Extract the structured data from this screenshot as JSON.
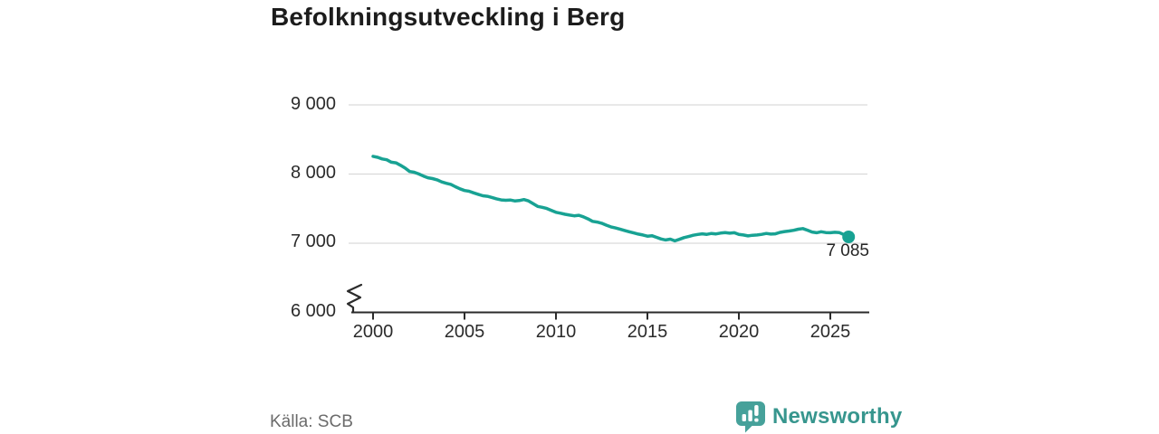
{
  "header": {
    "title": "Befolkningsutveckling i Berg"
  },
  "chart_data": {
    "type": "line",
    "title": "Befolkningsutveckling i Berg",
    "series_name": "Befolkning",
    "xlabel": "",
    "ylabel": "",
    "x_axis_range": [
      1998.8,
      2027.3
    ],
    "y_axis_range": [
      6000,
      9000
    ],
    "axis_break_at_bottom": true,
    "grid": true,
    "x_tick_labels": [
      "2000",
      "2005",
      "2010",
      "2015",
      "2020",
      "2025"
    ],
    "x_tick_years": [
      2000,
      2005,
      2010,
      2015,
      2020,
      2025
    ],
    "y_tick_labels": [
      "9 000",
      "8 000",
      "7 000",
      "6 000"
    ],
    "y_tick_values": [
      9000,
      8000,
      7000,
      6000
    ],
    "end_label": "7 085",
    "last_value": 7085,
    "last_year": 2026,
    "line_color": "#18a293",
    "dot_color": "#18a293",
    "grid_color": "#d9d9d9",
    "axis_color": "#2b2b2b",
    "points": [
      [
        2000.0,
        8250
      ],
      [
        2000.25,
        8235
      ],
      [
        2000.5,
        8212
      ],
      [
        2000.75,
        8200
      ],
      [
        2001.0,
        8165
      ],
      [
        2001.25,
        8155
      ],
      [
        2001.5,
        8120
      ],
      [
        2001.75,
        8080
      ],
      [
        2002.0,
        8030
      ],
      [
        2002.25,
        8020
      ],
      [
        2002.5,
        7995
      ],
      [
        2002.75,
        7965
      ],
      [
        2003.0,
        7940
      ],
      [
        2003.25,
        7928
      ],
      [
        2003.5,
        7910
      ],
      [
        2003.75,
        7880
      ],
      [
        2004.0,
        7860
      ],
      [
        2004.25,
        7845
      ],
      [
        2004.5,
        7810
      ],
      [
        2004.75,
        7780
      ],
      [
        2005.0,
        7755
      ],
      [
        2005.25,
        7745
      ],
      [
        2005.5,
        7722
      ],
      [
        2005.75,
        7700
      ],
      [
        2006.0,
        7680
      ],
      [
        2006.25,
        7672
      ],
      [
        2006.5,
        7655
      ],
      [
        2006.75,
        7635
      ],
      [
        2007.0,
        7620
      ],
      [
        2007.25,
        7615
      ],
      [
        2007.5,
        7618
      ],
      [
        2007.75,
        7605
      ],
      [
        2008.0,
        7610
      ],
      [
        2008.25,
        7625
      ],
      [
        2008.5,
        7605
      ],
      [
        2008.75,
        7565
      ],
      [
        2009.0,
        7525
      ],
      [
        2009.25,
        7512
      ],
      [
        2009.5,
        7495
      ],
      [
        2009.75,
        7468
      ],
      [
        2010.0,
        7440
      ],
      [
        2010.25,
        7428
      ],
      [
        2010.5,
        7412
      ],
      [
        2010.75,
        7400
      ],
      [
        2011.0,
        7390
      ],
      [
        2011.25,
        7398
      ],
      [
        2011.5,
        7375
      ],
      [
        2011.75,
        7345
      ],
      [
        2012.0,
        7310
      ],
      [
        2012.25,
        7300
      ],
      [
        2012.5,
        7282
      ],
      [
        2012.75,
        7255
      ],
      [
        2013.0,
        7230
      ],
      [
        2013.25,
        7215
      ],
      [
        2013.5,
        7198
      ],
      [
        2013.75,
        7178
      ],
      [
        2014.0,
        7160
      ],
      [
        2014.25,
        7142
      ],
      [
        2014.5,
        7125
      ],
      [
        2014.75,
        7112
      ],
      [
        2015.0,
        7095
      ],
      [
        2015.25,
        7102
      ],
      [
        2015.5,
        7078
      ],
      [
        2015.75,
        7055
      ],
      [
        2016.0,
        7040
      ],
      [
        2016.25,
        7052
      ],
      [
        2016.5,
        7028
      ],
      [
        2016.75,
        7050
      ],
      [
        2017.0,
        7075
      ],
      [
        2017.25,
        7090
      ],
      [
        2017.5,
        7108
      ],
      [
        2017.75,
        7120
      ],
      [
        2018.0,
        7130
      ],
      [
        2018.25,
        7122
      ],
      [
        2018.5,
        7135
      ],
      [
        2018.75,
        7128
      ],
      [
        2019.0,
        7140
      ],
      [
        2019.25,
        7147
      ],
      [
        2019.5,
        7138
      ],
      [
        2019.75,
        7145
      ],
      [
        2020.0,
        7120
      ],
      [
        2020.25,
        7112
      ],
      [
        2020.5,
        7100
      ],
      [
        2020.75,
        7108
      ],
      [
        2021.0,
        7112
      ],
      [
        2021.25,
        7122
      ],
      [
        2021.5,
        7135
      ],
      [
        2021.75,
        7125
      ],
      [
        2022.0,
        7130
      ],
      [
        2022.25,
        7150
      ],
      [
        2022.5,
        7162
      ],
      [
        2022.75,
        7170
      ],
      [
        2023.0,
        7180
      ],
      [
        2023.25,
        7196
      ],
      [
        2023.5,
        7205
      ],
      [
        2023.75,
        7182
      ],
      [
        2024.0,
        7155
      ],
      [
        2024.25,
        7145
      ],
      [
        2024.5,
        7160
      ],
      [
        2024.75,
        7148
      ],
      [
        2025.0,
        7145
      ],
      [
        2025.25,
        7152
      ],
      [
        2025.5,
        7146
      ],
      [
        2025.75,
        7118
      ],
      [
        2026.0,
        7085
      ]
    ]
  },
  "footer": {
    "source": "Källa: SCB",
    "brand": "Newsworthy",
    "logo_icon": "speech-bubble-bar-chart-icon",
    "brand_color": "#37968e",
    "brand_icon_color": "#46a19a"
  }
}
